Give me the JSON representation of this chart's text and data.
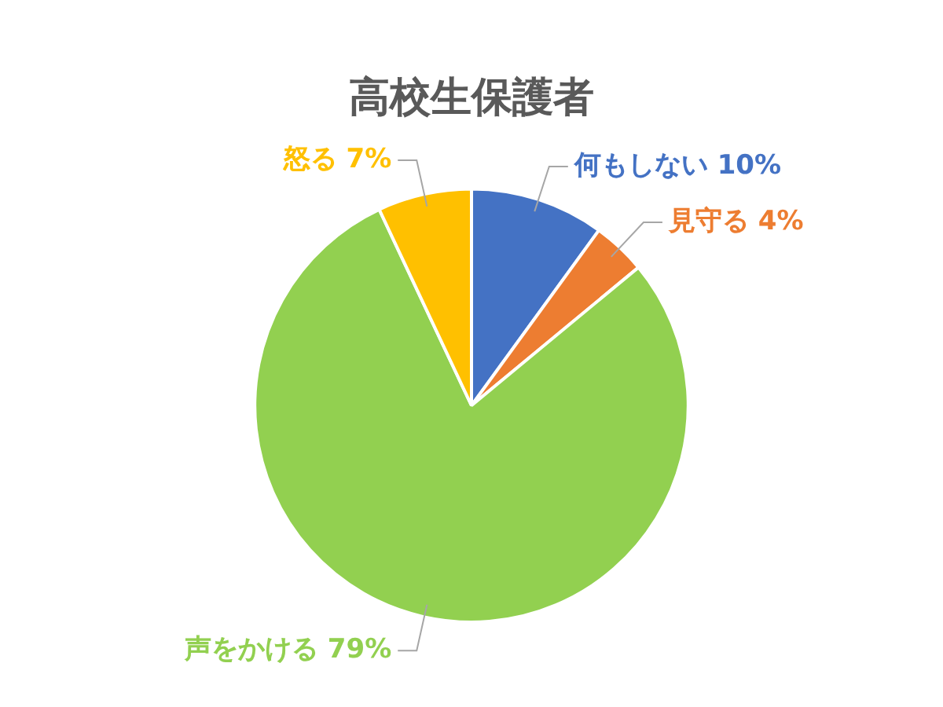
{
  "chart_data": {
    "type": "pie",
    "title": "高校生保護者",
    "categories": [
      "何もしない",
      "見守る",
      "声をかける",
      "怒る"
    ],
    "values": [
      10,
      4,
      79,
      7
    ],
    "colors": [
      "#4472c4",
      "#ed7d31",
      "#92d050",
      "#ffc000"
    ],
    "value_labels": [
      "10%",
      "4%",
      "79%",
      "7%"
    ],
    "legend": false
  }
}
